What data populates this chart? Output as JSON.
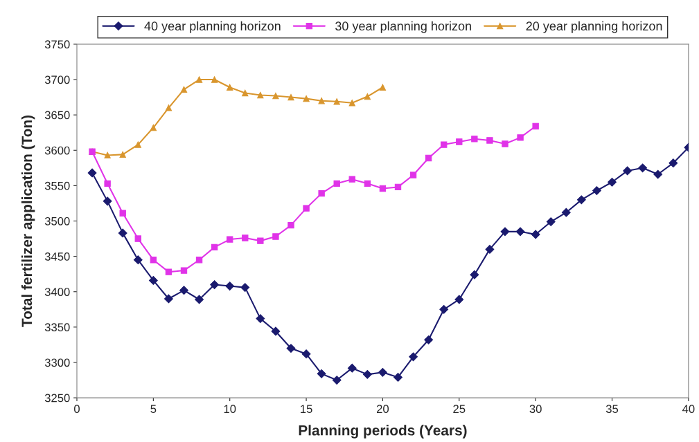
{
  "chart_data": {
    "type": "line",
    "xlabel": "Planning periods (Years)",
    "ylabel": "Total fertilizer application (Ton)",
    "xlim": [
      0,
      40
    ],
    "xticks": [
      0,
      5,
      10,
      15,
      20,
      25,
      30,
      35,
      40
    ],
    "ylim": [
      3250,
      3750
    ],
    "yticks": [
      3250,
      3300,
      3350,
      3400,
      3450,
      3500,
      3550,
      3600,
      3650,
      3700,
      3750
    ],
    "grid": false,
    "legend": "top",
    "series": [
      {
        "name": "40 year planning horizon",
        "color": "#1a1a6e",
        "marker": "diamond",
        "x": [
          1,
          2,
          3,
          4,
          5,
          6,
          7,
          8,
          9,
          10,
          11,
          12,
          13,
          14,
          15,
          16,
          17,
          18,
          19,
          20,
          21,
          22,
          23,
          24,
          25,
          26,
          27,
          28,
          29,
          30,
          31,
          32,
          33,
          34,
          35,
          36,
          37,
          38,
          39,
          40
        ],
        "values": [
          3568,
          3528,
          3483,
          3445,
          3416,
          3390,
          3402,
          3389,
          3410,
          3408,
          3406,
          3362,
          3344,
          3320,
          3312,
          3284,
          3275,
          3292,
          3283,
          3286,
          3279,
          3308,
          3332,
          3375,
          3389,
          3424,
          3460,
          3485,
          3485,
          3481,
          3499,
          3512,
          3530,
          3543,
          3555,
          3571,
          3575,
          3566,
          3582,
          3604
        ]
      },
      {
        "name": "30 year planning horizon",
        "color": "#e033e8",
        "marker": "square",
        "x": [
          1,
          2,
          3,
          4,
          5,
          6,
          7,
          8,
          9,
          10,
          11,
          12,
          13,
          14,
          15,
          16,
          17,
          18,
          19,
          20,
          21,
          22,
          23,
          24,
          25,
          26,
          27,
          28,
          29,
          30
        ],
        "values": [
          3598,
          3553,
          3511,
          3475,
          3445,
          3428,
          3430,
          3445,
          3463,
          3474,
          3476,
          3472,
          3478,
          3494,
          3518,
          3539,
          3553,
          3559,
          3553,
          3546,
          3548,
          3565,
          3589,
          3608,
          3612,
          3616,
          3614,
          3609,
          3618,
          3634
        ]
      },
      {
        "name": "20 year planning horizon",
        "color": "#d9962e",
        "marker": "triangle",
        "x": [
          1,
          2,
          3,
          4,
          5,
          6,
          7,
          8,
          9,
          10,
          11,
          12,
          13,
          14,
          15,
          16,
          17,
          18,
          19,
          20
        ],
        "values": [
          3598,
          3593,
          3594,
          3608,
          3632,
          3660,
          3686,
          3700,
          3700,
          3689,
          3681,
          3678,
          3677,
          3675,
          3673,
          3670,
          3669,
          3667,
          3676,
          3689
        ]
      }
    ]
  }
}
